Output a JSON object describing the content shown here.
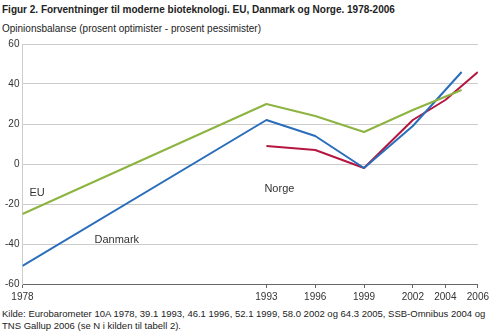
{
  "chart_data": {
    "type": "line",
    "title": "Figur 2. Forventninger til moderne bioteknologi. EU, Danmark og Norge. 1978-2006",
    "ylabel": "Opinionsbalanse (prosent optimister - prosent pessimister)",
    "note": "Kilde: Eurobarometer 10A 1978, 39.1 1993, 46.1 1996, 52.1 1999, 58.0 2002 og 64.3 2005, SSB-Omnibus 2004 og TNS Gallup 2006 (se N i kilden til tabell 2).",
    "series": [
      {
        "name": "EU",
        "color": "#8db440",
        "x": [
          1978,
          1993,
          1996,
          1999,
          2002,
          2005
        ],
        "values": [
          -25,
          30,
          24,
          16,
          27,
          37
        ]
      },
      {
        "name": "Danmark",
        "color": "#2a6ebb",
        "x": [
          1978,
          1993,
          1996,
          1999,
          2002,
          2005
        ],
        "values": [
          -51,
          22,
          14,
          -2,
          19,
          46
        ]
      },
      {
        "name": "Norge",
        "color": "#b5163f",
        "x": [
          1993,
          1996,
          1999,
          2002,
          2004,
          2006
        ],
        "values": [
          9,
          7,
          -2,
          22,
          32,
          46
        ]
      }
    ],
    "xlim": [
      1978,
      2006
    ],
    "xticks": [
      1978,
      1993,
      1996,
      1999,
      2002,
      2004,
      2006
    ],
    "ylim": [
      -60,
      60
    ],
    "yticks": [
      -60,
      -40,
      -20,
      0,
      20,
      40,
      60
    ],
    "grid": true
  }
}
